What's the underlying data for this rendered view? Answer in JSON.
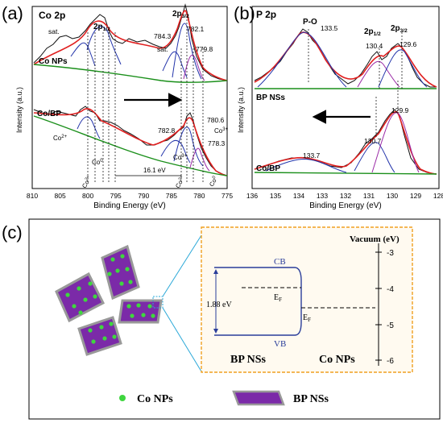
{
  "panels": {
    "a": {
      "tag": "(a)",
      "element": "Co 2p",
      "ylabel": "Intensity (a.u.)",
      "xlabel": "Binding Energy (eV)",
      "xticks": [
        "810",
        "805",
        "800",
        "795",
        "790",
        "785",
        "780",
        "775"
      ],
      "labels": {
        "p12": "2p1/2",
        "p32": "2p3/2",
        "sat1": "sat.",
        "sat2": "sat.",
        "pk7843": "784.3",
        "pk7821": "782.1",
        "pk7798": "779.8",
        "sample1": "Co NPs",
        "sample2": "Co/BP",
        "pk7828": "782.8",
        "pk7806": "780.6",
        "pk7783": "778.3",
        "co3a": "Co3+",
        "co3b": "Co3+",
        "co0a": "Co0",
        "co0b": "Co0",
        "co2a": "Co2+",
        "co2b": "Co2+",
        "shift": "16.1 eV",
        "dummy": ""
      }
    },
    "b": {
      "tag": "(b)",
      "element": "P 2p",
      "ylabel": "Intensity (a.u.)",
      "xlabel": "Binding Energy (eV)",
      "xticks": [
        "136",
        "135",
        "134",
        "133",
        "132",
        "131",
        "130",
        "129",
        "128"
      ],
      "labels": {
        "po": "P-O",
        "pk1335": "133.5",
        "p12": "2p1/2",
        "p32": "2p3/2",
        "pk1304": "130.4",
        "pk1296": "129.6",
        "sample1": "BP NSs",
        "sample2": "Co/BP",
        "pk1337": "133.7",
        "pk1307": "130.7",
        "pk1299": "129.9"
      }
    },
    "c": {
      "tag": "(c)",
      "vacuum": "Vacuum (eV)",
      "yticks": [
        "-3",
        "-4",
        "-5",
        "-6"
      ],
      "cb": "CB",
      "vb": "VB",
      "gap": "1.88 eV",
      "ef1": "EF",
      "ef2": "EF",
      "bp_label": "BP NSs",
      "co_label": "Co NPs",
      "legend_co": "Co NPs",
      "legend_bp": "BP NSs"
    }
  },
  "colors": {
    "data": "#111111",
    "fit": "#e02020",
    "background": "#1a8f1a",
    "peak_blue": "#2233aa",
    "peak_purple": "#9a2aa6",
    "accent": "#2a3d9a",
    "frame_orange": "#f0a020",
    "dot_green": "#3fd63f",
    "sheet_purple": "#7b2aa8",
    "cyan": "#2aa8d8"
  }
}
